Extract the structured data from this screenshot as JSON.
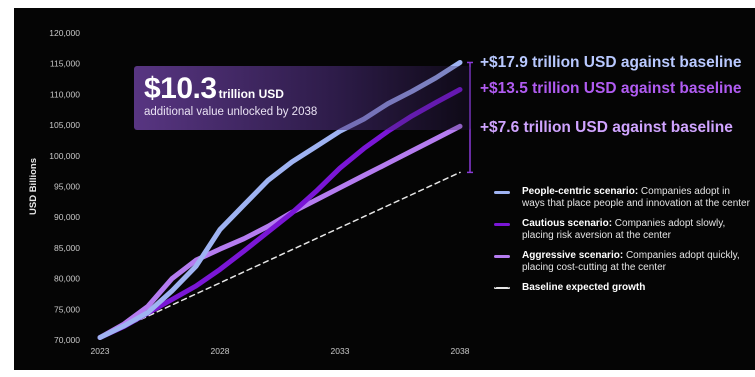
{
  "chart_data": {
    "type": "line",
    "x": [
      2023,
      2024,
      2025,
      2026,
      2027,
      2028,
      2029,
      2030,
      2031,
      2032,
      2033,
      2034,
      2035,
      2036,
      2037,
      2038
    ],
    "xticks": [
      "2023",
      "2028",
      "2033",
      "2038"
    ],
    "ylim": [
      70000,
      120000
    ],
    "yticks": [
      "70,000",
      "75,000",
      "80,000",
      "85,000",
      "90,000",
      "95,000",
      "100,000",
      "105,000",
      "110,000",
      "115,000",
      "120,000"
    ],
    "ylabel": "USD Billions",
    "xlabel": "",
    "grid": false,
    "series": [
      {
        "name": "People-centric scenario",
        "color": "#9fb3f2",
        "style": "solid",
        "values": [
          70400,
          72300,
          74500,
          78000,
          82000,
          88000,
          92000,
          96000,
          99000,
          101500,
          104000,
          106000,
          108500,
          110500,
          112700,
          115200
        ]
      },
      {
        "name": "Cautious scenario",
        "color": "#7a16d6",
        "style": "solid",
        "values": [
          70400,
          72200,
          74400,
          76600,
          78800,
          81500,
          84500,
          87600,
          90700,
          94200,
          98000,
          101200,
          104000,
          106500,
          108700,
          110800
        ]
      },
      {
        "name": "Aggressive scenario",
        "color": "#b57cf0",
        "style": "solid",
        "values": [
          70400,
          72600,
          75500,
          80000,
          83000,
          84800,
          86500,
          88500,
          90800,
          92800,
          94800,
          96800,
          98800,
          100800,
          102800,
          104800
        ]
      },
      {
        "name": "Baseline expected growth",
        "color": "#e6e6e6",
        "style": "dashed",
        "values": [
          70300,
          72100,
          73900,
          75700,
          77500,
          79300,
          81100,
          82900,
          84700,
          86500,
          88300,
          90100,
          91900,
          93700,
          95500,
          97300
        ]
      }
    ]
  },
  "callout": {
    "amount": "$10.3",
    "unit": "trillion USD",
    "subtitle": "additional value unlocked by 2038"
  },
  "end_labels": [
    {
      "text": "+$17.9 trillion USD against baseline",
      "color": "#b9c9ff"
    },
    {
      "text": "+$13.5 trillion USD against baseline",
      "color": "#b15cf2"
    },
    {
      "text": "+$7.6 trillion USD against baseline",
      "color": "#d0a4ff"
    }
  ],
  "legend": [
    {
      "name": "People-centric scenario:",
      "desc": " Companies adopt in ways that place people and innovation at the center",
      "color": "#9fb3f2",
      "style": "solid"
    },
    {
      "name": "Cautious scenario:",
      "desc": " Companies adopt slowly, placing risk aversion at the center",
      "color": "#7a16d6",
      "style": "solid"
    },
    {
      "name": "Aggressive scenario:",
      "desc": " Companies adopt quickly, placing cost-cutting at the center",
      "color": "#b57cf0",
      "style": "solid"
    },
    {
      "name": "Baseline expected growth",
      "desc": "",
      "color": "#e6e6e6",
      "style": "dashed"
    }
  ],
  "bracket_color": "#8a3ad8"
}
